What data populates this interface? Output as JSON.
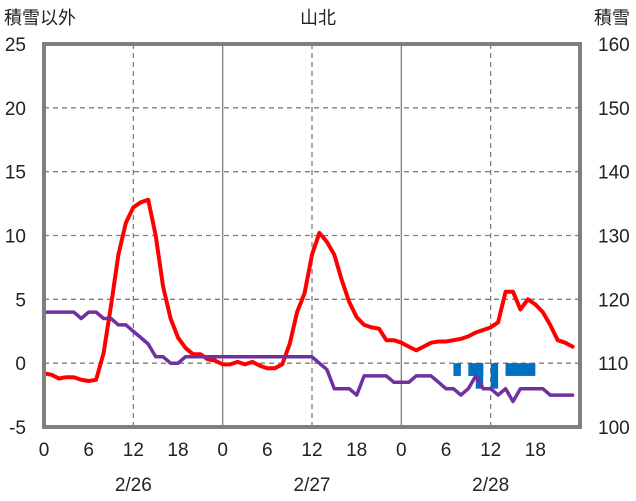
{
  "chart_data": {
    "type": "line",
    "title": "山北",
    "ylabel_left": "積雪以外",
    "ylabel_right": "積雪",
    "left_axis": {
      "min": -5,
      "max": 25,
      "ticks": [
        "-5",
        "0",
        "5",
        "10",
        "15",
        "20",
        "25"
      ]
    },
    "right_axis": {
      "min": 100,
      "max": 160,
      "ticks": [
        "100",
        "110",
        "120",
        "130",
        "140",
        "150",
        "160"
      ]
    },
    "x_axis": {
      "hours_range": [
        0,
        72
      ],
      "tick_hours": [
        0,
        6,
        12,
        18,
        24,
        30,
        36,
        42,
        48,
        54,
        60,
        66
      ],
      "tick_labels": [
        "0",
        "6",
        "12",
        "18",
        "0",
        "6",
        "12",
        "18",
        "0",
        "6",
        "12",
        "18"
      ],
      "date_labels": [
        {
          "at_hour": 12,
          "label": "2/26"
        },
        {
          "at_hour": 36,
          "label": "2/27"
        },
        {
          "at_hour": 60,
          "label": "2/28"
        }
      ]
    },
    "grid": {
      "horizontal": "dashed",
      "vertical_day": "solid",
      "vertical_noon": "dashed"
    },
    "series": [
      {
        "color": "#ff0000",
        "axis": "left",
        "points": [
          [
            0,
            -0.8
          ],
          [
            1,
            -0.9
          ],
          [
            2,
            -1.2
          ],
          [
            3,
            -1.1
          ],
          [
            4,
            -1.1
          ],
          [
            5,
            -1.3
          ],
          [
            6,
            -1.4
          ],
          [
            7,
            -1.3
          ],
          [
            8,
            0.8
          ],
          [
            9,
            4.5
          ],
          [
            10,
            8.5
          ],
          [
            11,
            11.0
          ],
          [
            12,
            12.2
          ],
          [
            13,
            12.6
          ],
          [
            14,
            12.8
          ],
          [
            15,
            10.0
          ],
          [
            16,
            6.0
          ],
          [
            17,
            3.5
          ],
          [
            18,
            2.0
          ],
          [
            19,
            1.2
          ],
          [
            20,
            0.7
          ],
          [
            21,
            0.7
          ],
          [
            22,
            0.3
          ],
          [
            23,
            0.2
          ],
          [
            24,
            -0.1
          ],
          [
            25,
            -0.1
          ],
          [
            26,
            0.1
          ],
          [
            27,
            -0.1
          ],
          [
            28,
            0.1
          ],
          [
            29,
            -0.2
          ],
          [
            30,
            -0.4
          ],
          [
            31,
            -0.4
          ],
          [
            32,
            -0.1
          ],
          [
            33,
            1.5
          ],
          [
            34,
            4.0
          ],
          [
            35,
            5.5
          ],
          [
            36,
            8.5
          ],
          [
            37,
            10.2
          ],
          [
            38,
            9.5
          ],
          [
            39,
            8.5
          ],
          [
            40,
            6.5
          ],
          [
            41,
            4.8
          ],
          [
            42,
            3.6
          ],
          [
            43,
            3.0
          ],
          [
            44,
            2.8
          ],
          [
            45,
            2.7
          ],
          [
            46,
            1.8
          ],
          [
            47,
            1.8
          ],
          [
            48,
            1.6
          ],
          [
            49,
            1.3
          ],
          [
            50,
            1.0
          ],
          [
            51,
            1.3
          ],
          [
            52,
            1.6
          ],
          [
            53,
            1.7
          ],
          [
            54,
            1.7
          ],
          [
            55,
            1.8
          ],
          [
            56,
            1.9
          ],
          [
            57,
            2.1
          ],
          [
            58,
            2.4
          ],
          [
            59,
            2.6
          ],
          [
            60,
            2.8
          ],
          [
            61,
            3.2
          ],
          [
            62,
            5.6
          ],
          [
            63,
            5.6
          ],
          [
            64,
            4.2
          ],
          [
            65,
            5.0
          ],
          [
            66,
            4.6
          ],
          [
            67,
            4.0
          ],
          [
            68,
            3.0
          ],
          [
            69,
            1.8
          ],
          [
            70,
            1.6
          ],
          [
            71,
            1.3
          ]
        ]
      },
      {
        "color": "#7030a0",
        "axis": "left",
        "points": [
          [
            0,
            4.0
          ],
          [
            4,
            4.0
          ],
          [
            5,
            3.5
          ],
          [
            6,
            4.0
          ],
          [
            7,
            4.0
          ],
          [
            8,
            3.5
          ],
          [
            9,
            3.5
          ],
          [
            10,
            3.0
          ],
          [
            11,
            3.0
          ],
          [
            12,
            2.5
          ],
          [
            13,
            2.0
          ],
          [
            14,
            1.5
          ],
          [
            15,
            0.5
          ],
          [
            16,
            0.5
          ],
          [
            17,
            0.0
          ],
          [
            18,
            0.0
          ],
          [
            19,
            0.5
          ],
          [
            20,
            0.5
          ],
          [
            36,
            0.5
          ],
          [
            37,
            0.0
          ],
          [
            38,
            -0.5
          ],
          [
            39,
            -2.0
          ],
          [
            41,
            -2.0
          ],
          [
            42,
            -2.5
          ],
          [
            43,
            -1.0
          ],
          [
            46,
            -1.0
          ],
          [
            47,
            -1.5
          ],
          [
            49,
            -1.5
          ],
          [
            50,
            -1.0
          ],
          [
            52,
            -1.0
          ],
          [
            53,
            -1.5
          ],
          [
            54,
            -2.0
          ],
          [
            55,
            -2.0
          ],
          [
            56,
            -2.5
          ],
          [
            57,
            -2.0
          ],
          [
            58,
            -1.0
          ],
          [
            59,
            -2.0
          ],
          [
            60,
            -2.0
          ],
          [
            61,
            -2.5
          ],
          [
            62,
            -2.0
          ],
          [
            63,
            -3.0
          ],
          [
            64,
            -2.0
          ],
          [
            67,
            -2.0
          ],
          [
            68,
            -2.5
          ],
          [
            71,
            -2.5
          ]
        ]
      }
    ],
    "bars": {
      "color": "#0070c0",
      "axis": "left",
      "baseline": 0,
      "items": [
        [
          55,
          56,
          -1.0
        ],
        [
          57,
          59,
          -1.0
        ],
        [
          58,
          59,
          -2.0
        ],
        [
          60,
          61,
          -2.0
        ],
        [
          62,
          66,
          -1.0
        ]
      ]
    }
  }
}
